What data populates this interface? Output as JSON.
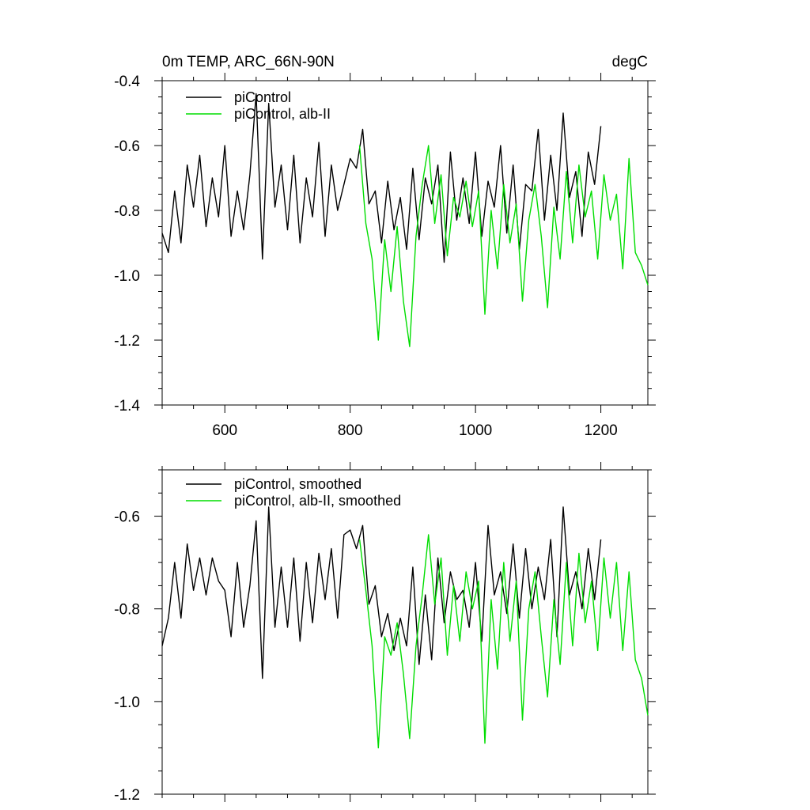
{
  "chart_data": [
    {
      "type": "line",
      "title": "0m TEMP, ARC_66N-90N",
      "units": "degC",
      "xlim": [
        500,
        1275
      ],
      "ylim": [
        -1.4,
        -0.4
      ],
      "x_ticks": [
        600,
        800,
        1000,
        1200
      ],
      "x_tick_labels": [
        "600",
        "800",
        "1000",
        "1200"
      ],
      "y_ticks": [
        -1.4,
        -1.2,
        -1.0,
        -0.8,
        -0.6,
        -0.4
      ],
      "y_tick_labels": [
        "-1.4",
        "-1.2",
        "-1.0",
        "-0.8",
        "-0.6",
        "-0.4"
      ],
      "legend_position": "top-left",
      "series": [
        {
          "name": "piControl",
          "color": "#000000",
          "x": [
            500,
            510,
            520,
            530,
            540,
            550,
            560,
            570,
            580,
            590,
            600,
            610,
            620,
            630,
            640,
            650,
            660,
            670,
            680,
            690,
            700,
            710,
            720,
            730,
            740,
            750,
            760,
            770,
            780,
            790,
            800,
            810,
            820,
            830,
            840,
            850,
            860,
            870,
            880,
            890,
            900,
            910,
            920,
            930,
            940,
            950,
            960,
            970,
            980,
            990,
            1000,
            1010,
            1020,
            1030,
            1040,
            1050,
            1060,
            1070,
            1080,
            1090,
            1100,
            1110,
            1120,
            1130,
            1140,
            1150,
            1160,
            1170,
            1180,
            1190,
            1200
          ],
          "y": [
            -0.87,
            -0.93,
            -0.74,
            -0.9,
            -0.66,
            -0.79,
            -0.63,
            -0.85,
            -0.7,
            -0.82,
            -0.6,
            -0.88,
            -0.74,
            -0.86,
            -0.69,
            -0.44,
            -0.95,
            -0.47,
            -0.79,
            -0.66,
            -0.86,
            -0.63,
            -0.9,
            -0.7,
            -0.82,
            -0.59,
            -0.88,
            -0.66,
            -0.8,
            -0.72,
            -0.64,
            -0.67,
            -0.55,
            -0.78,
            -0.74,
            -0.9,
            -0.71,
            -0.86,
            -0.76,
            -0.92,
            -0.67,
            -0.89,
            -0.7,
            -0.78,
            -0.66,
            -0.96,
            -0.62,
            -0.83,
            -0.7,
            -0.84,
            -0.62,
            -0.88,
            -0.71,
            -0.79,
            -0.6,
            -0.87,
            -0.66,
            -0.92,
            -0.72,
            -0.74,
            -0.55,
            -0.83,
            -0.63,
            -0.8,
            -0.5,
            -0.76,
            -0.68,
            -0.88,
            -0.62,
            -0.72,
            -0.54
          ]
        },
        {
          "name": "piControl, alb-II",
          "color": "#00dd00",
          "x": [
            815,
            825,
            835,
            845,
            855,
            865,
            875,
            885,
            895,
            905,
            915,
            925,
            935,
            945,
            955,
            965,
            975,
            985,
            995,
            1005,
            1015,
            1025,
            1035,
            1045,
            1055,
            1065,
            1075,
            1085,
            1095,
            1105,
            1115,
            1125,
            1135,
            1145,
            1155,
            1165,
            1175,
            1185,
            1195,
            1205,
            1215,
            1225,
            1235,
            1245,
            1255,
            1265,
            1275
          ],
          "y": [
            -0.6,
            -0.84,
            -0.95,
            -1.2,
            -0.89,
            -1.05,
            -0.85,
            -1.08,
            -1.22,
            -0.88,
            -0.72,
            -0.6,
            -0.84,
            -0.69,
            -0.94,
            -0.76,
            -0.82,
            -0.71,
            -0.85,
            -0.74,
            -1.12,
            -0.8,
            -0.98,
            -0.72,
            -0.9,
            -0.78,
            -1.08,
            -0.83,
            -0.72,
            -0.88,
            -1.1,
            -0.79,
            -0.95,
            -0.68,
            -0.9,
            -0.66,
            -0.82,
            -0.74,
            -0.95,
            -0.69,
            -0.83,
            -0.75,
            -0.98,
            -0.64,
            -0.93,
            -0.97,
            -1.03
          ]
        }
      ]
    },
    {
      "type": "line",
      "title": "",
      "xlim": [
        500,
        1275
      ],
      "ylim": [
        -1.2,
        -0.5
      ],
      "x_ticks": [
        600,
        800,
        1000,
        1200
      ],
      "y_ticks": [
        -1.2,
        -1.0,
        -0.8,
        -0.6
      ],
      "y_tick_labels": [
        "-1.2",
        "-1.0",
        "-0.8",
        "-0.6"
      ],
      "legend_position": "top-left",
      "series": [
        {
          "name": "piControl, smoothed",
          "color": "#000000",
          "x": [
            500,
            510,
            520,
            530,
            540,
            550,
            560,
            570,
            580,
            590,
            600,
            610,
            620,
            630,
            640,
            650,
            660,
            670,
            680,
            690,
            700,
            710,
            720,
            730,
            740,
            750,
            760,
            770,
            780,
            790,
            800,
            810,
            820,
            830,
            840,
            850,
            860,
            870,
            880,
            890,
            900,
            910,
            920,
            930,
            940,
            950,
            960,
            970,
            980,
            990,
            1000,
            1010,
            1020,
            1030,
            1040,
            1050,
            1060,
            1070,
            1080,
            1090,
            1100,
            1110,
            1120,
            1130,
            1140,
            1150,
            1160,
            1170,
            1180,
            1190,
            1200
          ],
          "y": [
            -0.88,
            -0.82,
            -0.7,
            -0.82,
            -0.66,
            -0.76,
            -0.69,
            -0.77,
            -0.69,
            -0.74,
            -0.76,
            -0.86,
            -0.7,
            -0.84,
            -0.75,
            -0.61,
            -0.95,
            -0.58,
            -0.84,
            -0.71,
            -0.84,
            -0.69,
            -0.87,
            -0.7,
            -0.83,
            -0.68,
            -0.78,
            -0.67,
            -0.82,
            -0.64,
            -0.63,
            -0.67,
            -0.62,
            -0.79,
            -0.75,
            -0.86,
            -0.81,
            -0.89,
            -0.82,
            -0.88,
            -0.71,
            -0.92,
            -0.77,
            -0.91,
            -0.69,
            -0.83,
            -0.72,
            -0.78,
            -0.76,
            -0.84,
            -0.7,
            -0.87,
            -0.62,
            -0.77,
            -0.72,
            -0.81,
            -0.66,
            -0.82,
            -0.67,
            -0.8,
            -0.71,
            -0.78,
            -0.65,
            -0.86,
            -0.58,
            -0.77,
            -0.72,
            -0.8,
            -0.67,
            -0.78,
            -0.65
          ]
        },
        {
          "name": "piControl, alb-II, smoothed",
          "color": "#00dd00",
          "x": [
            815,
            825,
            835,
            845,
            855,
            865,
            875,
            885,
            895,
            905,
            915,
            925,
            935,
            945,
            955,
            965,
            975,
            985,
            995,
            1005,
            1015,
            1025,
            1035,
            1045,
            1055,
            1065,
            1075,
            1085,
            1095,
            1105,
            1115,
            1125,
            1135,
            1145,
            1155,
            1165,
            1175,
            1185,
            1195,
            1205,
            1215,
            1225,
            1235,
            1245,
            1255,
            1265,
            1275
          ],
          "y": [
            -0.65,
            -0.76,
            -0.88,
            -1.1,
            -0.86,
            -0.9,
            -0.83,
            -0.94,
            -1.08,
            -0.88,
            -0.77,
            -0.64,
            -0.79,
            -0.69,
            -0.9,
            -0.75,
            -0.87,
            -0.72,
            -0.8,
            -0.74,
            -1.09,
            -0.78,
            -0.93,
            -0.7,
            -0.87,
            -0.74,
            -1.04,
            -0.8,
            -0.72,
            -0.86,
            -0.99,
            -0.78,
            -0.92,
            -0.7,
            -0.88,
            -0.68,
            -0.83,
            -0.74,
            -0.89,
            -0.69,
            -0.82,
            -0.7,
            -0.89,
            -0.72,
            -0.91,
            -0.95,
            -1.03
          ]
        }
      ]
    }
  ]
}
